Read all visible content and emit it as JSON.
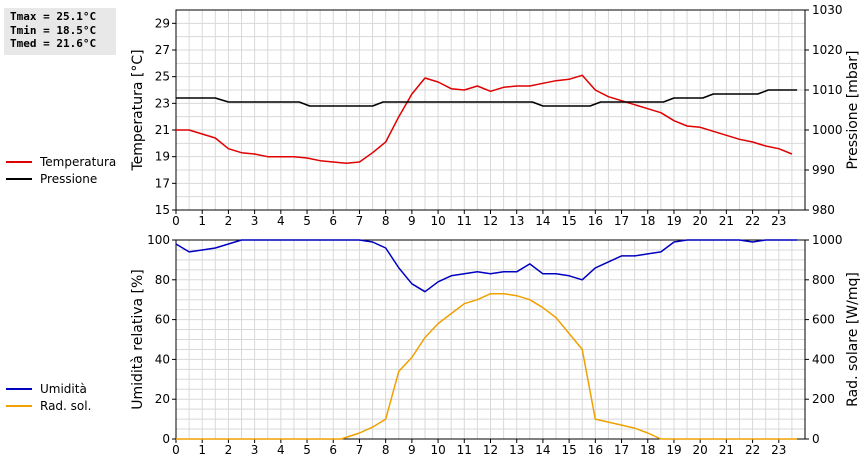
{
  "stats": {
    "tmax": "Tmax = 25.1°C",
    "tmin": "Tmin = 18.5°C",
    "tmed": "Tmed = 21.6°C"
  },
  "legend_top": [
    {
      "label": "Temperatura",
      "color": "#e00000"
    },
    {
      "label": "Pressione",
      "color": "#000000"
    }
  ],
  "legend_bottom": [
    {
      "label": "Umidità",
      "color": "#0000c0"
    },
    {
      "label": "Rad. sol.",
      "color": "#f0a000"
    }
  ],
  "chart_data": [
    {
      "type": "line",
      "ylabel": "Temperatura [°C]",
      "y2label": "Pressione [mbar]",
      "xlim": [
        0,
        24
      ],
      "ylim": [
        15,
        30
      ],
      "y2lim": [
        980,
        1030
      ],
      "xticks": [
        "0",
        "1",
        "2",
        "3",
        "4",
        "5",
        "6",
        "7",
        "8",
        "9",
        "10",
        "11",
        "12",
        "13",
        "14",
        "15",
        "16",
        "17",
        "18",
        "19",
        "20",
        "21",
        "22",
        "23"
      ],
      "yticks": [
        "15",
        "17",
        "19",
        "21",
        "23",
        "25",
        "27",
        "29"
      ],
      "y2ticks": [
        "980",
        "990",
        "1000",
        "1010",
        "1020",
        "1030"
      ],
      "grid": true,
      "series": [
        {
          "name": "Temperatura",
          "color": "#e00000",
          "axis": "left",
          "points": [
            [
              0,
              21.0
            ],
            [
              0.5,
              21.0
            ],
            [
              1,
              20.7
            ],
            [
              1.5,
              20.4
            ],
            [
              2,
              19.6
            ],
            [
              2.5,
              19.3
            ],
            [
              3,
              19.2
            ],
            [
              3.5,
              19.0
            ],
            [
              4,
              19.0
            ],
            [
              4.5,
              19.0
            ],
            [
              5,
              18.9
            ],
            [
              5.5,
              18.7
            ],
            [
              6,
              18.6
            ],
            [
              6.5,
              18.5
            ],
            [
              7,
              18.6
            ],
            [
              7.5,
              19.3
            ],
            [
              8,
              20.1
            ],
            [
              8.5,
              22.0
            ],
            [
              9,
              23.7
            ],
            [
              9.5,
              24.9
            ],
            [
              10,
              24.6
            ],
            [
              10.5,
              24.1
            ],
            [
              11,
              24.0
            ],
            [
              11.5,
              24.3
            ],
            [
              12,
              23.9
            ],
            [
              12.5,
              24.2
            ],
            [
              13,
              24.3
            ],
            [
              13.5,
              24.3
            ],
            [
              14,
              24.5
            ],
            [
              14.5,
              24.7
            ],
            [
              15,
              24.8
            ],
            [
              15.5,
              25.1
            ],
            [
              16,
              24.0
            ],
            [
              16.5,
              23.5
            ],
            [
              17,
              23.2
            ],
            [
              17.5,
              22.9
            ],
            [
              18,
              22.6
            ],
            [
              18.5,
              22.3
            ],
            [
              19,
              21.7
            ],
            [
              19.5,
              21.3
            ],
            [
              20,
              21.2
            ],
            [
              20.5,
              20.9
            ],
            [
              21,
              20.6
            ],
            [
              21.5,
              20.3
            ],
            [
              22,
              20.1
            ],
            [
              22.5,
              19.8
            ],
            [
              23,
              19.6
            ],
            [
              23.5,
              19.2
            ]
          ]
        },
        {
          "name": "Pressione",
          "color": "#000000",
          "axis": "right",
          "points": [
            [
              0,
              1008
            ],
            [
              1.5,
              1008
            ],
            [
              2,
              1007
            ],
            [
              4.7,
              1007
            ],
            [
              5.1,
              1006
            ],
            [
              7.5,
              1006
            ],
            [
              7.9,
              1007
            ],
            [
              13.6,
              1007
            ],
            [
              14,
              1006
            ],
            [
              15.8,
              1006
            ],
            [
              16.2,
              1007
            ],
            [
              18.6,
              1007
            ],
            [
              19,
              1008
            ],
            [
              20.1,
              1008
            ],
            [
              20.5,
              1009
            ],
            [
              22.2,
              1009
            ],
            [
              22.6,
              1010
            ],
            [
              23.7,
              1010
            ]
          ]
        }
      ]
    },
    {
      "type": "line",
      "ylabel": "Umidità relativa [%]",
      "y2label": "Rad. solare [W/mq]",
      "xlim": [
        0,
        24
      ],
      "ylim": [
        0,
        100
      ],
      "y2lim": [
        0,
        1000
      ],
      "xticks": [
        "0",
        "1",
        "2",
        "3",
        "4",
        "5",
        "6",
        "7",
        "8",
        "9",
        "10",
        "11",
        "12",
        "13",
        "14",
        "15",
        "16",
        "17",
        "18",
        "19",
        "20",
        "21",
        "22",
        "23"
      ],
      "yticks": [
        "0",
        "20",
        "40",
        "60",
        "80",
        "100"
      ],
      "y2ticks": [
        "0",
        "200",
        "400",
        "600",
        "800",
        "1000"
      ],
      "grid": true,
      "series": [
        {
          "name": "Umidità",
          "color": "#0000c0",
          "axis": "left",
          "points": [
            [
              0,
              98
            ],
            [
              0.5,
              94
            ],
            [
              1,
              95
            ],
            [
              1.5,
              96
            ],
            [
              2,
              98
            ],
            [
              2.5,
              100
            ],
            [
              7,
              100
            ],
            [
              7.5,
              99
            ],
            [
              8,
              96
            ],
            [
              8.5,
              86
            ],
            [
              9,
              78
            ],
            [
              9.5,
              74
            ],
            [
              10,
              79
            ],
            [
              10.5,
              82
            ],
            [
              11,
              83
            ],
            [
              11.5,
              84
            ],
            [
              12,
              83
            ],
            [
              12.5,
              84
            ],
            [
              13,
              84
            ],
            [
              13.5,
              88
            ],
            [
              14,
              83
            ],
            [
              14.5,
              83
            ],
            [
              15,
              82
            ],
            [
              15.5,
              80
            ],
            [
              16,
              86
            ],
            [
              16.5,
              89
            ],
            [
              17,
              92
            ],
            [
              17.5,
              92
            ],
            [
              18,
              93
            ],
            [
              18.5,
              94
            ],
            [
              19,
              99
            ],
            [
              19.5,
              100
            ],
            [
              21.5,
              100
            ],
            [
              22,
              99
            ],
            [
              22.5,
              100
            ],
            [
              23.7,
              100
            ]
          ]
        },
        {
          "name": "Rad. sol.",
          "color": "#f0a000",
          "axis": "right",
          "points": [
            [
              0,
              0
            ],
            [
              6.3,
              0
            ],
            [
              7,
              30
            ],
            [
              7.5,
              60
            ],
            [
              8,
              100
            ],
            [
              8.5,
              340
            ],
            [
              9,
              410
            ],
            [
              9.5,
              510
            ],
            [
              10,
              580
            ],
            [
              10.5,
              630
            ],
            [
              11,
              680
            ],
            [
              11.5,
              700
            ],
            [
              12,
              730
            ],
            [
              12.5,
              730
            ],
            [
              13,
              720
            ],
            [
              13.5,
              700
            ],
            [
              14,
              660
            ],
            [
              14.5,
              610
            ],
            [
              15,
              530
            ],
            [
              15.5,
              450
            ],
            [
              16,
              100
            ],
            [
              16.5,
              85
            ],
            [
              17,
              70
            ],
            [
              17.5,
              55
            ],
            [
              18,
              30
            ],
            [
              18.5,
              0
            ],
            [
              23.7,
              0
            ]
          ]
        }
      ]
    }
  ]
}
